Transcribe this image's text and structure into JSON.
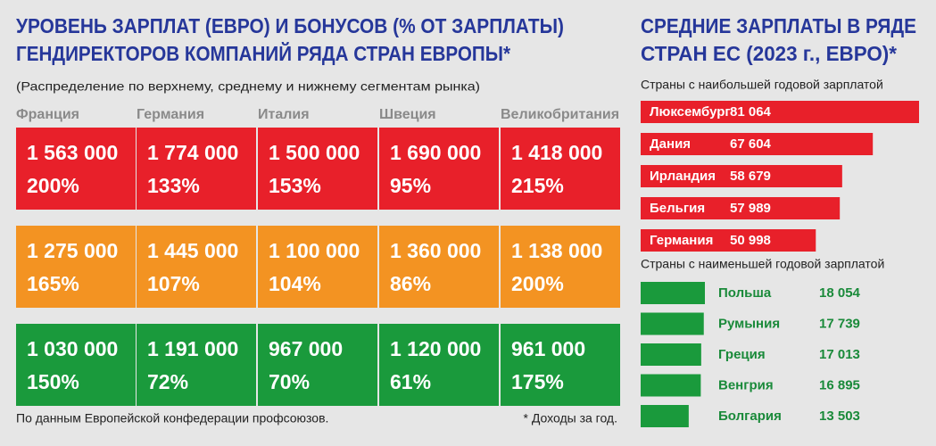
{
  "header": {
    "title_lines": [
      "УРОВЕНЬ ЗАРПЛАТ (ЕВРО) И БОНУСОВ (% ОТ ЗАРПЛАТЫ)",
      "ГЕНДИРЕКТОРОВ КОМПАНИЙ РЯДА СТРАН ЕВРОПЫ*"
    ],
    "subtitle": "(Распределение по верхнему, среднему и нижнему сегментам рынка)"
  },
  "table": {
    "columns": [
      "Франция",
      "Германия",
      "Италия",
      "Швеция",
      "Великобритания"
    ],
    "row_colors": [
      "#e8202a",
      "#f39322",
      "#1a9a3c"
    ],
    "salaries": [
      [
        "1 563 000",
        "1 774 000",
        "1 500 000",
        "1 690 000",
        "1 418 000"
      ],
      [
        "1 275 000",
        "1 445 000",
        "1 100 000",
        "1 360 000",
        "1 138 000"
      ],
      [
        "1 030 000",
        "1 191 000",
        "967 000",
        "1 120 000",
        "961 000"
      ]
    ],
    "bonuses": [
      [
        "200%",
        "133%",
        "153%",
        "95%",
        "215%"
      ],
      [
        "165%",
        "107%",
        "104%",
        "86%",
        "200%"
      ],
      [
        "150%",
        "72%",
        "70%",
        "61%",
        "175%"
      ]
    ]
  },
  "footer": {
    "source": "По данным Европейской конфедерации профсоюзов.",
    "note": "* Доходы за год."
  },
  "side_title_lines": [
    "СРЕДНИЕ ЗАРПЛАТЫ В РЯДЕ",
    "СТРАН ЕС (2023 г., ЕВРО)*"
  ],
  "chart_data": [
    {
      "type": "bar",
      "title": "Страны с наибольшей годовой зарплатой",
      "color": "#e8202a",
      "categories": [
        "Люксембург",
        "Дания",
        "Ирландия",
        "Бельгия",
        "Германия"
      ],
      "values": [
        81064,
        67604,
        58679,
        57989,
        50998
      ],
      "value_labels": [
        "81 064",
        "67 604",
        "58 679",
        "57 989",
        "50 998"
      ]
    },
    {
      "type": "bar",
      "title": "Страны с наименьшей годовой зарплатой",
      "color": "#1a9a3c",
      "categories": [
        "Польша",
        "Румыния",
        "Греция",
        "Венгрия",
        "Болгария"
      ],
      "values": [
        18054,
        17739,
        17013,
        16895,
        13503
      ],
      "value_labels": [
        "18 054",
        "17 739",
        "17 013",
        "16 895",
        "13 503"
      ]
    }
  ]
}
